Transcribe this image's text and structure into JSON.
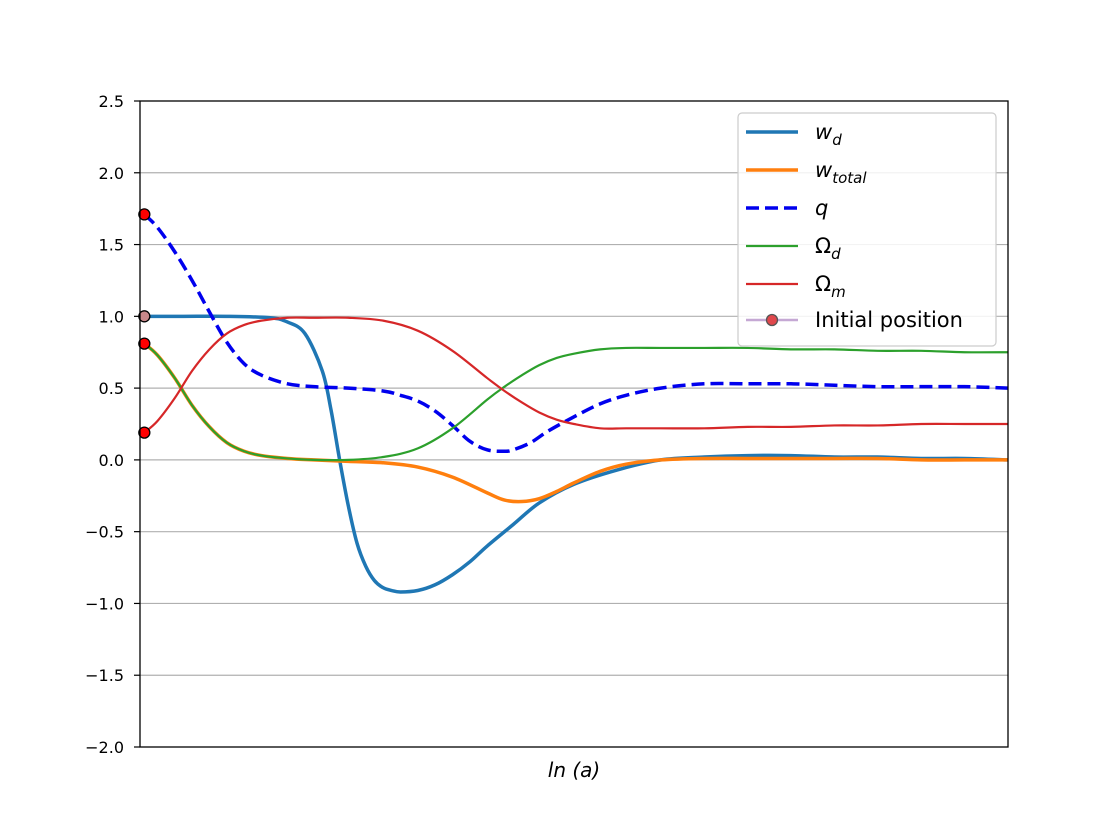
{
  "chart_data": {
    "type": "line",
    "title": "",
    "xlabel": "ln (a)",
    "ylabel": "",
    "xlim": [
      0,
      1
    ],
    "ylim": [
      -2.0,
      2.5
    ],
    "yticks": [
      -2.0,
      -1.5,
      -1.0,
      -0.5,
      0.0,
      0.5,
      1.0,
      1.5,
      2.0,
      2.5
    ],
    "ytick_labels": [
      "−2.0",
      "−1.5",
      "−1.0",
      "−0.5",
      "0.0",
      "0.5",
      "1.0",
      "1.5",
      "2.0",
      "2.5"
    ],
    "xticks_visible": false,
    "grid": "horizontal",
    "legend_position": "top-right",
    "series": [
      {
        "name": "w_d",
        "legend_main": "w",
        "legend_sub": "d",
        "color": "#1f77b4",
        "style": "solid",
        "width": 3.5,
        "x": [
          0.005,
          0.05,
          0.1,
          0.15,
          0.17,
          0.19,
          0.21,
          0.22,
          0.23,
          0.24,
          0.25,
          0.26,
          0.27,
          0.28,
          0.29,
          0.3,
          0.32,
          0.34,
          0.36,
          0.38,
          0.4,
          0.43,
          0.46,
          0.5,
          0.55,
          0.6,
          0.65,
          0.7,
          0.75,
          0.8,
          0.85,
          0.9,
          0.95,
          1.0
        ],
        "y": [
          1.0,
          1.0,
          1.0,
          0.99,
          0.96,
          0.88,
          0.62,
          0.35,
          0.0,
          -0.32,
          -0.58,
          -0.74,
          -0.84,
          -0.89,
          -0.91,
          -0.92,
          -0.91,
          -0.87,
          -0.8,
          -0.71,
          -0.6,
          -0.45,
          -0.3,
          -0.17,
          -0.07,
          0.0,
          0.02,
          0.03,
          0.03,
          0.02,
          0.02,
          0.01,
          0.01,
          0.0
        ]
      },
      {
        "name": "w_total",
        "legend_main": "w",
        "legend_sub": "total",
        "color": "#ff7f0e",
        "style": "solid",
        "width": 3.5,
        "x": [
          0.005,
          0.02,
          0.04,
          0.06,
          0.08,
          0.1,
          0.12,
          0.14,
          0.17,
          0.2,
          0.24,
          0.28,
          0.32,
          0.36,
          0.4,
          0.42,
          0.44,
          0.46,
          0.48,
          0.5,
          0.53,
          0.56,
          0.6,
          0.65,
          0.7,
          0.75,
          0.8,
          0.85,
          0.9,
          0.95,
          1.0
        ],
        "y": [
          0.81,
          0.73,
          0.57,
          0.38,
          0.23,
          0.12,
          0.06,
          0.03,
          0.01,
          0.0,
          -0.01,
          -0.02,
          -0.05,
          -0.12,
          -0.23,
          -0.28,
          -0.29,
          -0.27,
          -0.22,
          -0.16,
          -0.08,
          -0.03,
          0.0,
          0.01,
          0.01,
          0.01,
          0.01,
          0.01,
          0.0,
          0.0,
          0.0
        ]
      },
      {
        "name": "q",
        "legend_main": "q",
        "legend_sub": "",
        "color": "#0000ee",
        "style": "dashed",
        "width": 3.5,
        "x": [
          0.005,
          0.02,
          0.04,
          0.06,
          0.08,
          0.1,
          0.12,
          0.14,
          0.17,
          0.2,
          0.24,
          0.28,
          0.3,
          0.32,
          0.34,
          0.36,
          0.38,
          0.4,
          0.42,
          0.43,
          0.45,
          0.47,
          0.5,
          0.53,
          0.56,
          0.6,
          0.65,
          0.7,
          0.75,
          0.8,
          0.85,
          0.9,
          0.95,
          1.0
        ],
        "y": [
          1.71,
          1.62,
          1.45,
          1.25,
          1.03,
          0.82,
          0.67,
          0.59,
          0.53,
          0.51,
          0.5,
          0.48,
          0.45,
          0.41,
          0.34,
          0.24,
          0.13,
          0.07,
          0.06,
          0.07,
          0.12,
          0.2,
          0.3,
          0.39,
          0.45,
          0.5,
          0.53,
          0.53,
          0.53,
          0.52,
          0.51,
          0.51,
          0.51,
          0.5
        ]
      },
      {
        "name": "Ω_d",
        "legend_main": "Ω",
        "legend_sub": "d",
        "color": "#2ca02c",
        "style": "solid",
        "width": 2.2,
        "x": [
          0.005,
          0.02,
          0.04,
          0.06,
          0.08,
          0.1,
          0.12,
          0.14,
          0.17,
          0.2,
          0.24,
          0.28,
          0.32,
          0.36,
          0.4,
          0.42,
          0.44,
          0.46,
          0.48,
          0.5,
          0.53,
          0.56,
          0.6,
          0.65,
          0.7,
          0.75,
          0.8,
          0.85,
          0.9,
          0.95,
          1.0
        ],
        "y": [
          0.81,
          0.73,
          0.57,
          0.38,
          0.23,
          0.12,
          0.06,
          0.03,
          0.01,
          0.0,
          0.0,
          0.02,
          0.08,
          0.22,
          0.42,
          0.51,
          0.59,
          0.66,
          0.71,
          0.74,
          0.77,
          0.78,
          0.78,
          0.78,
          0.78,
          0.77,
          0.77,
          0.76,
          0.76,
          0.75,
          0.75
        ]
      },
      {
        "name": "Ω_m",
        "legend_main": "Ω",
        "legend_sub": "m",
        "color": "#d62728",
        "style": "solid",
        "width": 2.2,
        "x": [
          0.005,
          0.02,
          0.04,
          0.06,
          0.08,
          0.1,
          0.12,
          0.14,
          0.17,
          0.2,
          0.24,
          0.28,
          0.32,
          0.36,
          0.4,
          0.42,
          0.44,
          0.46,
          0.48,
          0.5,
          0.53,
          0.56,
          0.6,
          0.65,
          0.7,
          0.75,
          0.8,
          0.85,
          0.9,
          0.95,
          1.0
        ],
        "y": [
          0.19,
          0.27,
          0.43,
          0.62,
          0.77,
          0.88,
          0.94,
          0.97,
          0.99,
          0.99,
          0.99,
          0.97,
          0.9,
          0.76,
          0.57,
          0.48,
          0.4,
          0.33,
          0.28,
          0.25,
          0.22,
          0.22,
          0.22,
          0.22,
          0.23,
          0.23,
          0.24,
          0.24,
          0.25,
          0.25,
          0.25
        ]
      }
    ],
    "initial_position": {
      "name": "Initial position",
      "x": 0.005,
      "points": [
        1.71,
        1.0,
        0.81,
        0.19
      ],
      "fill_colors": [
        "#ff0000",
        "#c8888a",
        "#ff0000",
        "#ff0000"
      ],
      "legend_line_color": "#c5a8d4",
      "legend_marker_color": "#e0474c"
    }
  }
}
